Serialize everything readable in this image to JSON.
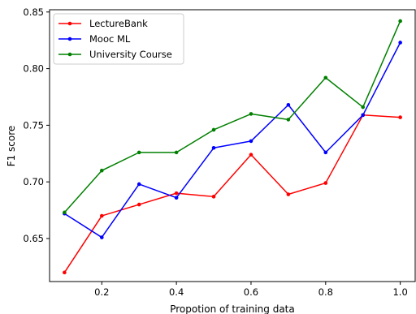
{
  "chart_data": {
    "type": "line",
    "title": "",
    "xlabel": "Propotion of training data",
    "ylabel": "F1 score",
    "xlim": [
      0.06,
      1.04
    ],
    "ylim": [
      0.612,
      0.852
    ],
    "xticks": [
      0.2,
      0.4,
      0.6,
      0.8,
      1.0
    ],
    "xtick_labels": [
      "0.2",
      "0.4",
      "0.6",
      "0.8",
      "1.0"
    ],
    "yticks": [
      0.65,
      0.7,
      0.75,
      0.8,
      0.85
    ],
    "ytick_labels": [
      "0.65",
      "0.70",
      "0.75",
      "0.80",
      "0.85"
    ],
    "grid": false,
    "legend_position": "top-left",
    "x": [
      0.1,
      0.2,
      0.3,
      0.4,
      0.5,
      0.6,
      0.7,
      0.8,
      0.9,
      1.0
    ],
    "series": [
      {
        "name": "LectureBank",
        "color": "#ff0000",
        "values": [
          0.62,
          0.67,
          0.68,
          0.69,
          0.687,
          0.724,
          0.689,
          0.699,
          0.759,
          0.757
        ]
      },
      {
        "name": "Mooc ML",
        "color": "#0000ff",
        "values": [
          0.672,
          0.651,
          0.698,
          0.686,
          0.73,
          0.736,
          0.768,
          0.726,
          0.759,
          0.823
        ]
      },
      {
        "name": "University Course",
        "color": "#008000",
        "values": [
          0.673,
          0.71,
          0.726,
          0.726,
          0.746,
          0.76,
          0.755,
          0.792,
          0.766,
          0.842
        ]
      }
    ]
  }
}
